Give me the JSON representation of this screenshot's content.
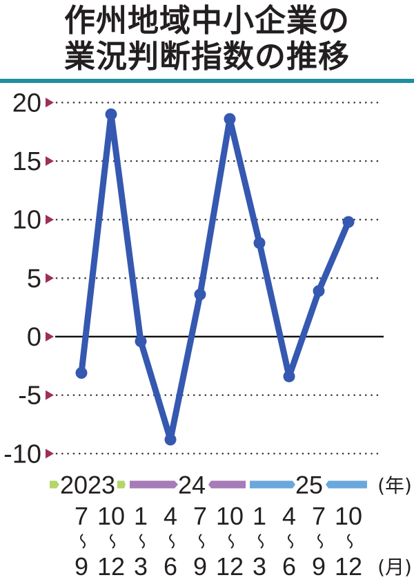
{
  "title_line1": "作州地域中小企業の",
  "title_line2": "業況判断指数の推移",
  "chart_data": {
    "type": "line",
    "title": "作州地域中小企業の業況判断指数の推移",
    "xlabel": "(月)",
    "ylabel": "",
    "ylim": [
      -10,
      20
    ],
    "yticks": [
      20,
      15,
      10,
      5,
      0,
      -5,
      -10
    ],
    "grid": "dotted horizontal",
    "categories": [
      "2023 7-9",
      "2023 10-12",
      "2024 1-3",
      "2024 4-6",
      "2024 7-9",
      "2024 10-12",
      "2025 1-3",
      "2025 4-6",
      "2025 7-9",
      "2025 10-12"
    ],
    "month_start": [
      "7",
      "10",
      "1",
      "4",
      "7",
      "10",
      "1",
      "4",
      "7",
      "10"
    ],
    "month_end": [
      "9",
      "12",
      "3",
      "6",
      "9",
      "12",
      "3",
      "6",
      "9",
      "12"
    ],
    "range_mark": "∫",
    "years": [
      {
        "label": "2023",
        "color": "#b5d56a"
      },
      {
        "label": "24",
        "color": "#a77ab8"
      },
      {
        "label": "25",
        "color": "#6aa8dc"
      }
    ],
    "year_unit": "(年)",
    "month_unit": "(月)",
    "series": [
      {
        "name": "業況判断指数",
        "color": "#3558b0",
        "values": [
          -3.1,
          19.0,
          -0.4,
          -8.8,
          3.6,
          18.6,
          8.0,
          -3.4,
          3.9,
          9.8
        ]
      }
    ]
  },
  "colors": {
    "line": "#3558b0",
    "tick_marker": "#9c2f5c",
    "rule": "#1f8ea0",
    "grid": "#333333"
  }
}
